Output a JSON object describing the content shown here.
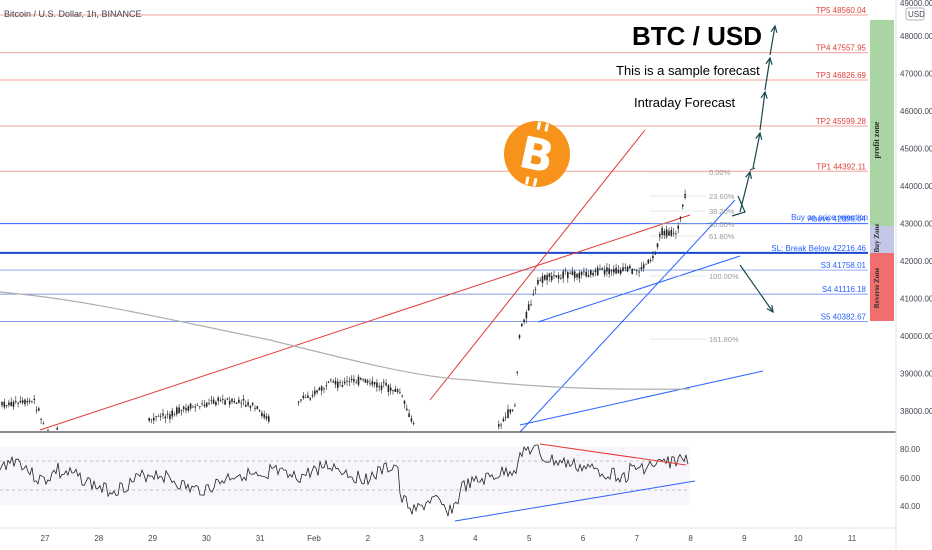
{
  "header": {
    "symbol": "Bitcoin / U.S. Dollar, 1h, BINANCE",
    "currency": "USD",
    "top_price": "49000.00"
  },
  "annotations": {
    "title": "BTC / USD",
    "subtitle": "This is a sample forecast",
    "note": "Intraday Forecast",
    "profit_zone": "profit zone",
    "buy_zone": "Buy Zone",
    "reverse_zone": "Reverse Zone",
    "buy_on_rejection": "Buy on price rejection",
    "logo_icon": "bitcoin-logo-icon"
  },
  "colors": {
    "tp": "#e0413a",
    "support": "#2962ff",
    "level_line": "#f3a09a",
    "profit_zone": "#a8d5a2",
    "buy_zone": "#c4c7e8",
    "reverse_zone": "#f06e6e",
    "bitcoin": "#f7931a",
    "arrow": "#17494d"
  },
  "chart_data": {
    "type": "candlestick",
    "y_axis_ticks": [
      "49000.00",
      "48000.00",
      "47000.00",
      "46000.00",
      "45000.00",
      "44000.00",
      "43000.00",
      "42000.00",
      "41000.00",
      "40000.00",
      "39000.00",
      "38000.00"
    ],
    "x_axis_ticks": [
      "27",
      "28",
      "29",
      "30",
      "31",
      "Feb",
      "2",
      "3",
      "4",
      "5",
      "6",
      "7",
      "8",
      "9",
      "10",
      "11"
    ],
    "levels": [
      {
        "label": "TP5 48560.04",
        "price": 48560.04,
        "kind": "tp"
      },
      {
        "label": "TP4 47557.95",
        "price": 47557.95,
        "kind": "tp"
      },
      {
        "label": "TP3 46826.69",
        "price": 46826.69,
        "kind": "tp"
      },
      {
        "label": "TP2 45599.28",
        "price": 45599.28,
        "kind": "tp"
      },
      {
        "label": "TP1 44392.11",
        "price": 44392.11,
        "kind": "tp"
      },
      {
        "label": "Above 42998.04",
        "price": 42998.04,
        "kind": "buy"
      },
      {
        "label": "SL: Break Below 42216.46",
        "price": 42216.46,
        "kind": "sl"
      },
      {
        "label": "S3 41758.01",
        "price": 41758.01,
        "kind": "support"
      },
      {
        "label": "S4 41116.18",
        "price": 41116.18,
        "kind": "support"
      },
      {
        "label": "S5 40382.67",
        "price": 40382.67,
        "kind": "support"
      }
    ],
    "fib_levels": [
      "0.00%",
      "23.60%",
      "38.20%",
      "50.00%",
      "61.80%",
      "100.00%",
      "161.80%"
    ],
    "rsi_ticks": [
      "80.00",
      "60.00",
      "40.00"
    ]
  }
}
